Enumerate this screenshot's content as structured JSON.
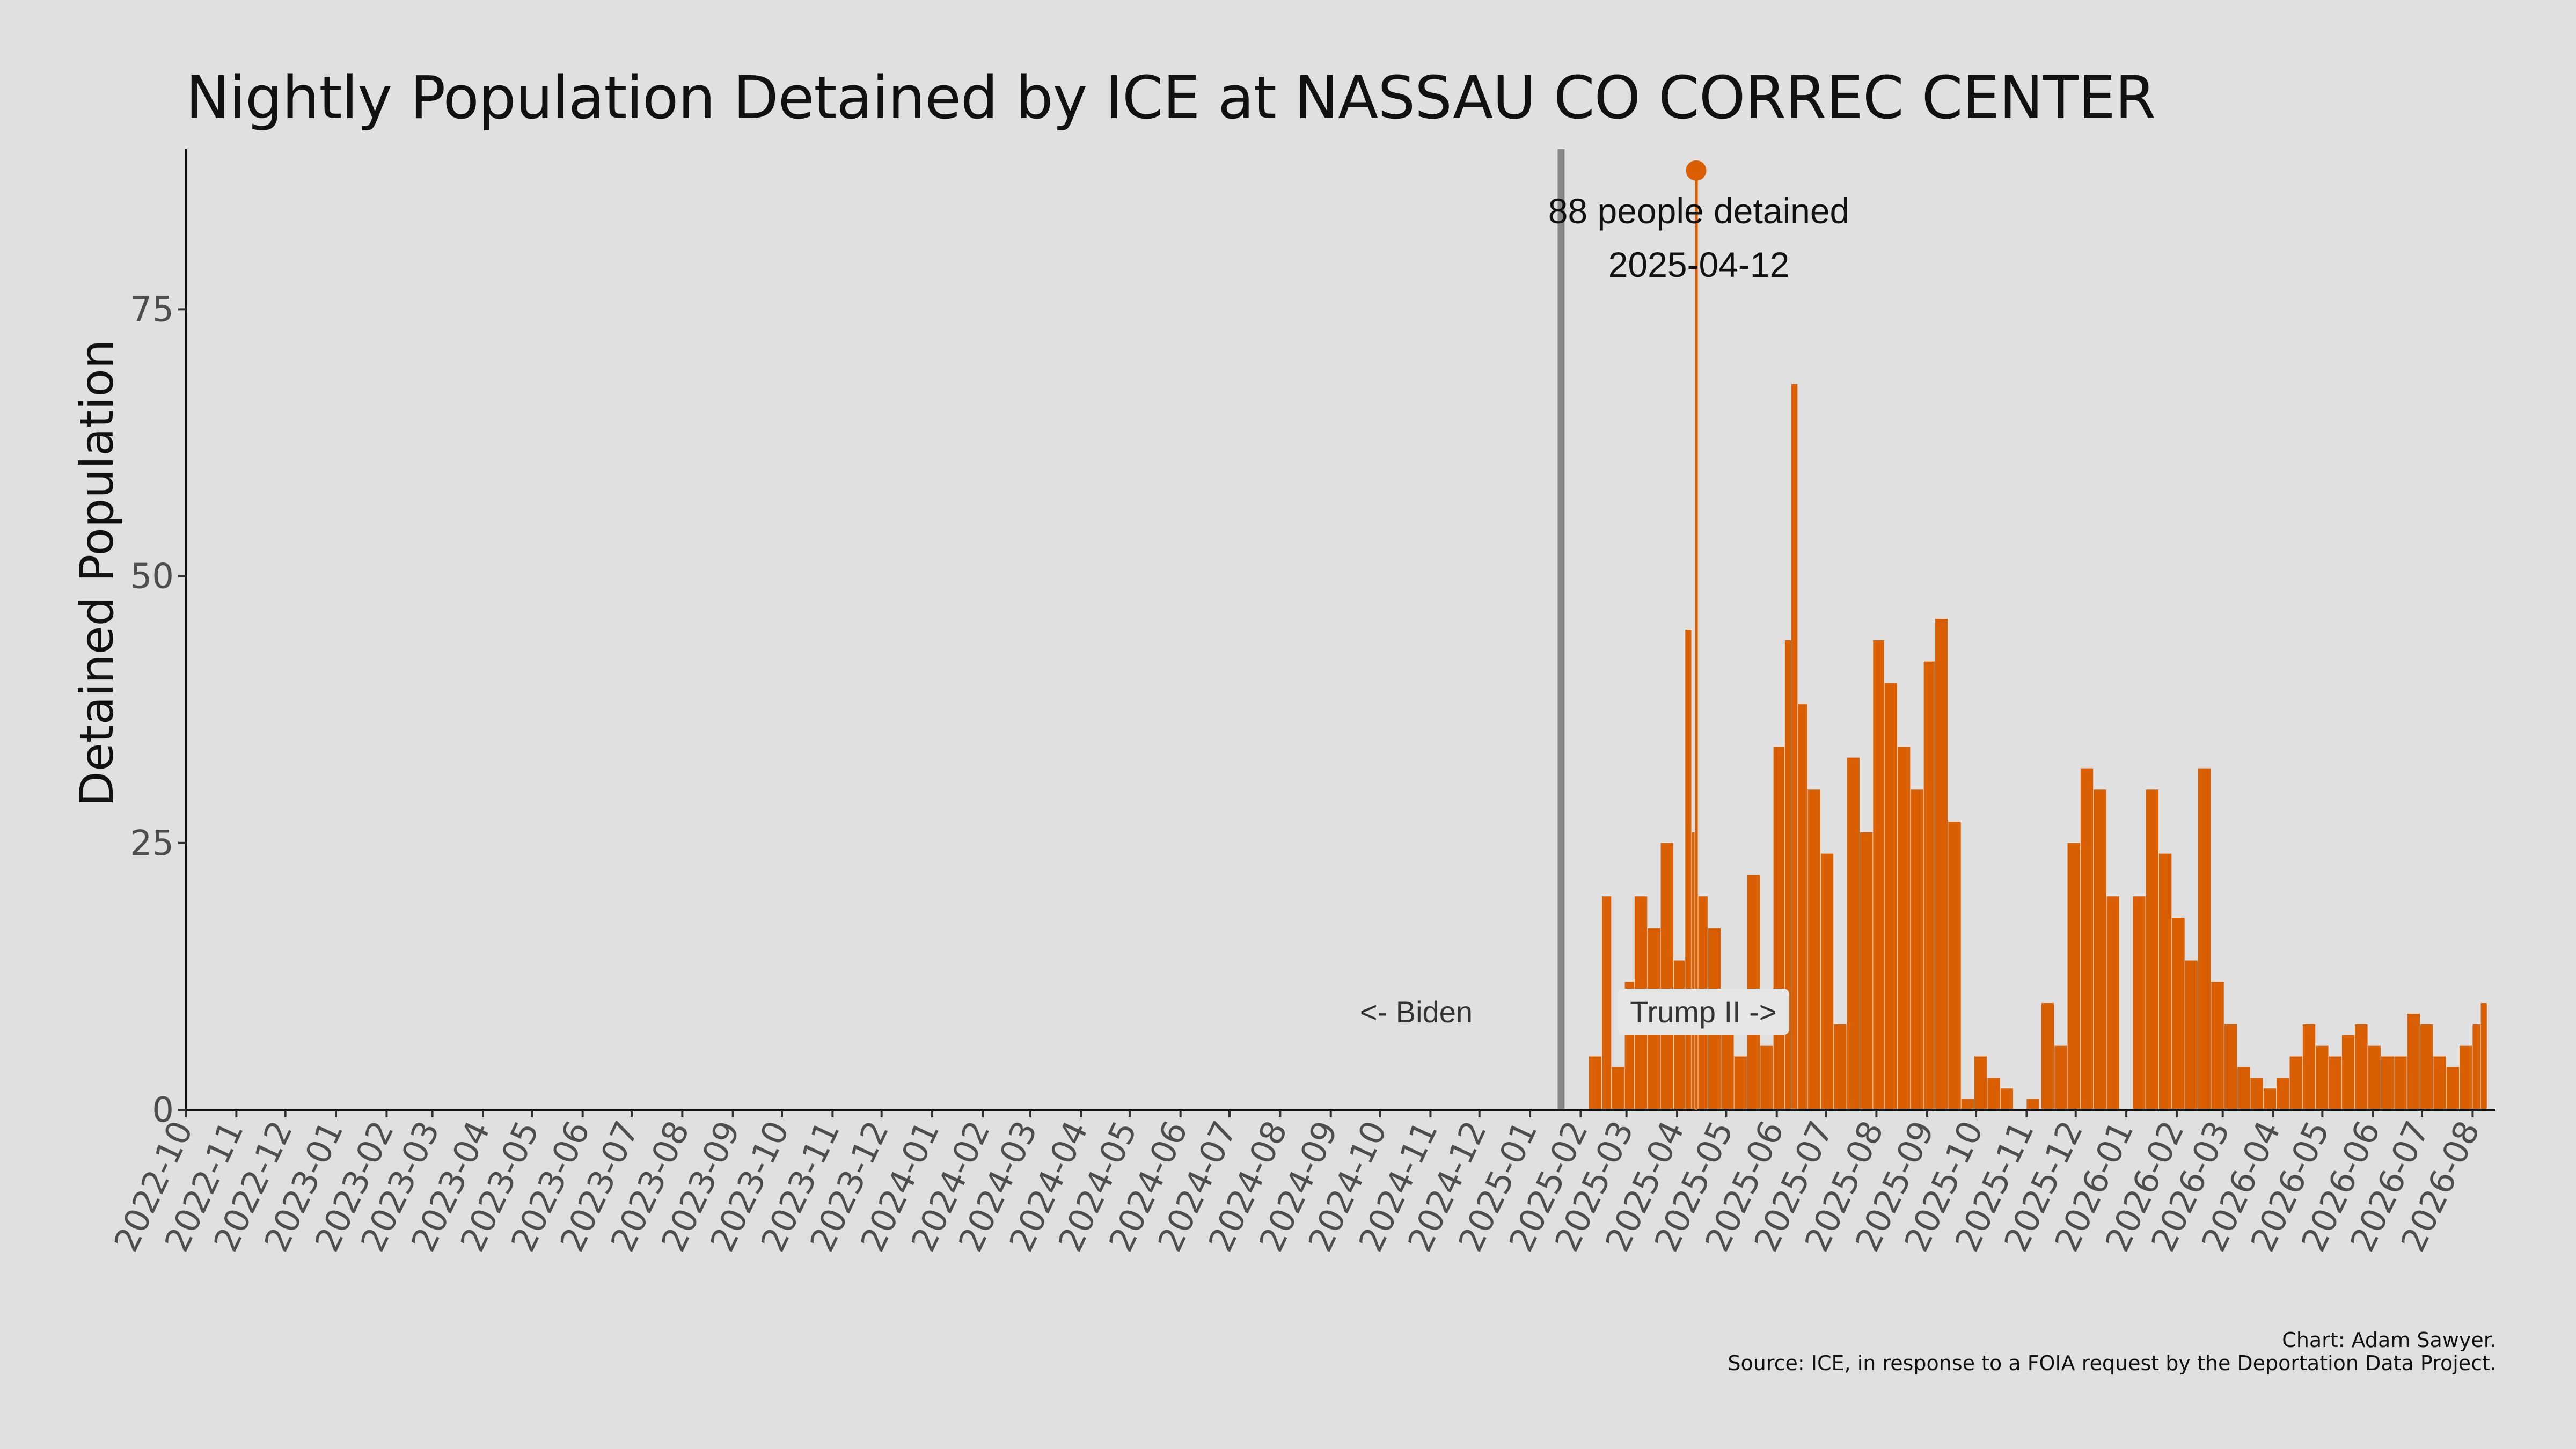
{
  "chart_data": {
    "type": "bar",
    "title": "Nightly Population Detained by ICE at NASSAU CO CORREC CENTER",
    "xlabel": "",
    "ylabel": "Detained Population",
    "ylim": [
      0,
      90
    ],
    "xlim": [
      "2022-10-01",
      "2026-08-15"
    ],
    "yticks": [
      0,
      25,
      50,
      75
    ],
    "xticks": [
      "2022-10",
      "2022-11",
      "2022-12",
      "2023-01",
      "2023-02",
      "2023-03",
      "2023-04",
      "2023-05",
      "2023-06",
      "2023-07",
      "2023-08",
      "2023-09",
      "2023-10",
      "2023-11",
      "2023-12",
      "2024-01",
      "2024-02",
      "2024-03",
      "2024-04",
      "2024-05",
      "2024-06",
      "2024-07",
      "2024-08",
      "2024-09",
      "2024-10",
      "2024-11",
      "2024-12",
      "2025-01",
      "2025-02",
      "2025-03",
      "2025-04",
      "2025-05",
      "2025-06",
      "2025-07",
      "2025-08",
      "2025-09",
      "2025-10",
      "2025-11",
      "2025-12",
      "2026-01",
      "2026-02",
      "2026-03",
      "2026-04",
      "2026-05",
      "2026-06",
      "2026-07",
      "2026-08"
    ],
    "grid": false,
    "color": "#d95f02",
    "series": [
      {
        "x": [
          "2025-02-06",
          "2025-02-14",
          "2025-02-20",
          "2025-02-28",
          "2025-03-06",
          "2025-03-14",
          "2025-03-22",
          "2025-03-30",
          "2025-04-06",
          "2025-04-10",
          "2025-04-12",
          "2025-04-14",
          "2025-04-20",
          "2025-04-28",
          "2025-05-06",
          "2025-05-14",
          "2025-05-22",
          "2025-05-30",
          "2025-06-06",
          "2025-06-10",
          "2025-06-14",
          "2025-06-20",
          "2025-06-28",
          "2025-07-06",
          "2025-07-14",
          "2025-07-22",
          "2025-07-30",
          "2025-08-06",
          "2025-08-14",
          "2025-08-22",
          "2025-08-30",
          "2025-09-06",
          "2025-09-14",
          "2025-09-22",
          "2025-09-30",
          "2025-10-08",
          "2025-10-16",
          "2025-10-24",
          "2025-11-01",
          "2025-11-10",
          "2025-11-18",
          "2025-11-26",
          "2025-12-04",
          "2025-12-12",
          "2025-12-20",
          "2025-12-28",
          "2026-01-05",
          "2026-01-13",
          "2026-01-21",
          "2026-01-29",
          "2026-02-06",
          "2026-02-14",
          "2026-02-22",
          "2026-03-02",
          "2026-03-10",
          "2026-03-18",
          "2026-03-26",
          "2026-04-03",
          "2026-04-11",
          "2026-04-19",
          "2026-04-27",
          "2026-05-05",
          "2026-05-13",
          "2026-05-21",
          "2026-05-29",
          "2026-06-06",
          "2026-06-14",
          "2026-06-22",
          "2026-06-30",
          "2026-07-08",
          "2026-07-16",
          "2026-07-24",
          "2026-08-01",
          "2026-08-06"
        ],
        "values": [
          5,
          20,
          4,
          12,
          20,
          17,
          25,
          14,
          45,
          26,
          88,
          20,
          17,
          8,
          5,
          22,
          6,
          34,
          44,
          68,
          38,
          30,
          24,
          8,
          33,
          26,
          44,
          40,
          34,
          30,
          42,
          46,
          27,
          1,
          5,
          3,
          2,
          0,
          1,
          10,
          6,
          25,
          32,
          30,
          20,
          0,
          20,
          30,
          24,
          18,
          14,
          32,
          12,
          8,
          4,
          3,
          2,
          3,
          5,
          8,
          6,
          5,
          7,
          8,
          6,
          5,
          5,
          9,
          8,
          5,
          4,
          6,
          8,
          10
        ]
      }
    ],
    "annotations": {
      "peak_label": "88 people detained",
      "peak_date": "2025-04-12",
      "peak_value": 88,
      "divider_date": "2025-01-20",
      "biden_label": "<- Biden",
      "trump_label": "Trump II ->"
    }
  },
  "caption": {
    "credit": "Chart: Adam Sawyer.",
    "source": "Source: ICE, in response to a FOIA request by the Deportation Data Project."
  }
}
